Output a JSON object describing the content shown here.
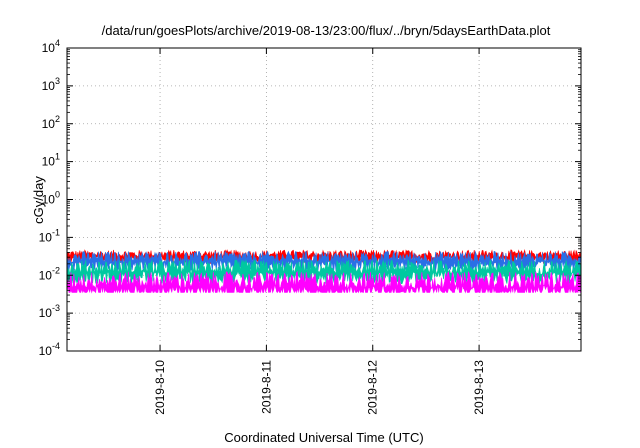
{
  "chart_data": {
    "type": "line",
    "title": "/data/run/goesPlots/archive/2019-08-13/23:00/flux/../bryn/5daysEarthData.plot",
    "xlabel": "Coordinated Universal Time (UTC)",
    "ylabel": "cGy/day",
    "yscale": "log",
    "ylim": [
      0.0001,
      10000
    ],
    "y_ticks": [
      {
        "mantissa": "10",
        "exp": "-4"
      },
      {
        "mantissa": "10",
        "exp": "-3"
      },
      {
        "mantissa": "10",
        "exp": "-2"
      },
      {
        "mantissa": "10",
        "exp": "-1"
      },
      {
        "mantissa": "10",
        "exp": "0"
      },
      {
        "mantissa": "10",
        "exp": "1"
      },
      {
        "mantissa": "10",
        "exp": "2"
      },
      {
        "mantissa": "10",
        "exp": "3"
      },
      {
        "mantissa": "10",
        "exp": "4"
      }
    ],
    "xlim": [
      "2019-08-09T03:00",
      "2019-08-13T23:00"
    ],
    "x_ticks": [
      "2019-8-10",
      "2019-8-11",
      "2019-8-12",
      "2019-8-13"
    ],
    "grid": true,
    "series": [
      {
        "color": "#ff0000",
        "low": 0.02,
        "high": 0.05,
        "level": 0.032
      },
      {
        "color": "#2a6fe6",
        "low": 0.012,
        "high": 0.045,
        "level": 0.025
      },
      {
        "color": "#00c8a0",
        "low": 0.006,
        "high": 0.03,
        "level": 0.013
      },
      {
        "color": "#ff00ff",
        "low": 0.0035,
        "high": 0.025,
        "level": 0.0055
      }
    ]
  }
}
